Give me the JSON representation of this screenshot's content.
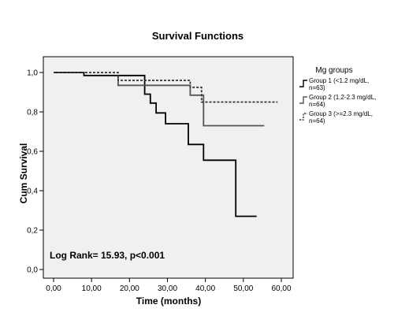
{
  "chart_data": {
    "type": "line",
    "step": true,
    "title": "Survival Functions",
    "xlabel": "Time (months)",
    "ylabel": "Cum Survival",
    "xlim": [
      0,
      60
    ],
    "ylim": [
      0,
      1
    ],
    "x_ticks": [
      "0,00",
      "10,00",
      "20,00",
      "30,00",
      "40,00",
      "50,00",
      "60,00"
    ],
    "y_ticks": [
      "0,0",
      "0,2",
      "0,4",
      "0,6",
      "0,8",
      "1,0"
    ],
    "grid": false,
    "legend_title": "Mg groups",
    "legend_position": "right",
    "annotation": "Log Rank= 15.93, p<0.001",
    "series": [
      {
        "name": "Group 1 (<1.2 mg/dL, n=63)",
        "legend_lines": [
          "Group 1 (<1.2 mg/dL,",
          "n=63)"
        ],
        "color": "#000000",
        "dash": "solid",
        "points": [
          [
            0,
            1.0
          ],
          [
            8,
            1.0
          ],
          [
            8,
            0.985
          ],
          [
            24,
            0.985
          ],
          [
            24,
            0.89
          ],
          [
            25.5,
            0.89
          ],
          [
            25.5,
            0.845
          ],
          [
            27,
            0.845
          ],
          [
            27,
            0.795
          ],
          [
            29.5,
            0.795
          ],
          [
            29.5,
            0.74
          ],
          [
            35.5,
            0.74
          ],
          [
            35.5,
            0.635
          ],
          [
            39.5,
            0.635
          ],
          [
            39.5,
            0.555
          ],
          [
            48,
            0.555
          ],
          [
            48,
            0.27
          ],
          [
            53.5,
            0.27
          ]
        ]
      },
      {
        "name": "Group 2 (1.2-2.3 mg/dL, n=64)",
        "legend_lines": [
          "Group 2 (1.2-2.3 mg/dL,",
          "n=64)"
        ],
        "color": "#555555",
        "dash": "solid",
        "points": [
          [
            17,
            0.985
          ],
          [
            17,
            0.935
          ],
          [
            36,
            0.935
          ],
          [
            36,
            0.885
          ],
          [
            39.5,
            0.885
          ],
          [
            39.5,
            0.73
          ],
          [
            55.5,
            0.73
          ]
        ]
      },
      {
        "name": "Group 3 (>=2.3 mg/dL, n=64)",
        "legend_lines": [
          "Group 3 (>=2.3 mg/dL,",
          "n=64)"
        ],
        "color": "#333333",
        "dash": "3,2",
        "points": [
          [
            0,
            1.0
          ],
          [
            17,
            1.0
          ],
          [
            17,
            0.96
          ],
          [
            36,
            0.96
          ],
          [
            36,
            0.925
          ],
          [
            39,
            0.925
          ],
          [
            39,
            0.85
          ],
          [
            59,
            0.85
          ]
        ]
      }
    ]
  }
}
